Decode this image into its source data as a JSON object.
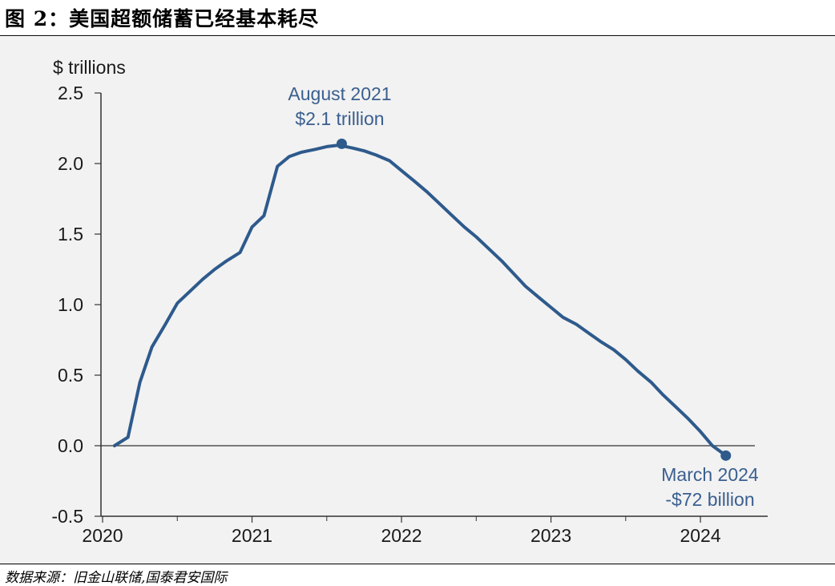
{
  "figure": {
    "title": "图 2：美国超额储蓄已经基本耗尽",
    "source": "数据来源：旧金山联储,国泰君安国际"
  },
  "colors": {
    "line": "#2e5a8c",
    "annotation": "#3a5f8f",
    "axis": "#333333",
    "panel": "#f2f2f2"
  },
  "chart_data": {
    "type": "line",
    "title": "",
    "xlabel": "",
    "ylabel": "$ trillions",
    "xlim": [
      2020.0,
      2024.45
    ],
    "ylim": [
      -0.5,
      2.5
    ],
    "x_ticks": [
      {
        "value": 2020,
        "label": "2020"
      },
      {
        "value": 2021,
        "label": "2021"
      },
      {
        "value": 2022,
        "label": "2022"
      },
      {
        "value": 2023,
        "label": "2023"
      },
      {
        "value": 2024,
        "label": "2024"
      }
    ],
    "y_ticks": [
      {
        "value": 2.5,
        "label": "2.5"
      },
      {
        "value": 2.0,
        "label": "2.0"
      },
      {
        "value": 1.5,
        "label": "1.5"
      },
      {
        "value": 1.0,
        "label": "1.0"
      },
      {
        "value": 0.5,
        "label": "0.5"
      },
      {
        "value": 0.0,
        "label": "0.0"
      },
      {
        "value": -0.5,
        "label": "-0.5"
      }
    ],
    "grid": false,
    "series": [
      {
        "x": [
          2020.08,
          2020.17,
          2020.25,
          2020.33,
          2020.42,
          2020.5,
          2020.58,
          2020.67,
          2020.75,
          2020.83,
          2020.92,
          2021.0,
          2021.08,
          2021.17,
          2021.25,
          2021.33,
          2021.42,
          2021.5,
          2021.58,
          2021.67,
          2021.75,
          2021.83,
          2021.92,
          2022.0,
          2022.08,
          2022.17,
          2022.25,
          2022.33,
          2022.42,
          2022.5,
          2022.58,
          2022.67,
          2022.75,
          2022.83,
          2022.92,
          2023.0,
          2023.08,
          2023.17,
          2023.25,
          2023.33,
          2023.42,
          2023.5,
          2023.58,
          2023.67,
          2023.75,
          2023.83,
          2023.92,
          2024.0,
          2024.08,
          2024.17
        ],
        "values": [
          0.0,
          0.06,
          0.45,
          0.7,
          0.86,
          1.01,
          1.09,
          1.18,
          1.25,
          1.31,
          1.37,
          1.55,
          1.63,
          1.98,
          2.05,
          2.08,
          2.1,
          2.12,
          2.13,
          2.11,
          2.09,
          2.06,
          2.02,
          1.95,
          1.88,
          1.8,
          1.72,
          1.64,
          1.55,
          1.48,
          1.4,
          1.31,
          1.22,
          1.13,
          1.05,
          0.98,
          0.91,
          0.86,
          0.8,
          0.74,
          0.68,
          0.61,
          0.53,
          0.45,
          0.36,
          0.28,
          0.19,
          0.1,
          0.0,
          -0.07
        ]
      }
    ],
    "annotations": [
      {
        "x": 2021.6,
        "y": 2.14,
        "line1": "August 2021",
        "line2": "$2.1 trillion"
      },
      {
        "x": 2024.17,
        "y": -0.07,
        "line1": "March 2024",
        "line2": "-$72 billion"
      }
    ]
  }
}
